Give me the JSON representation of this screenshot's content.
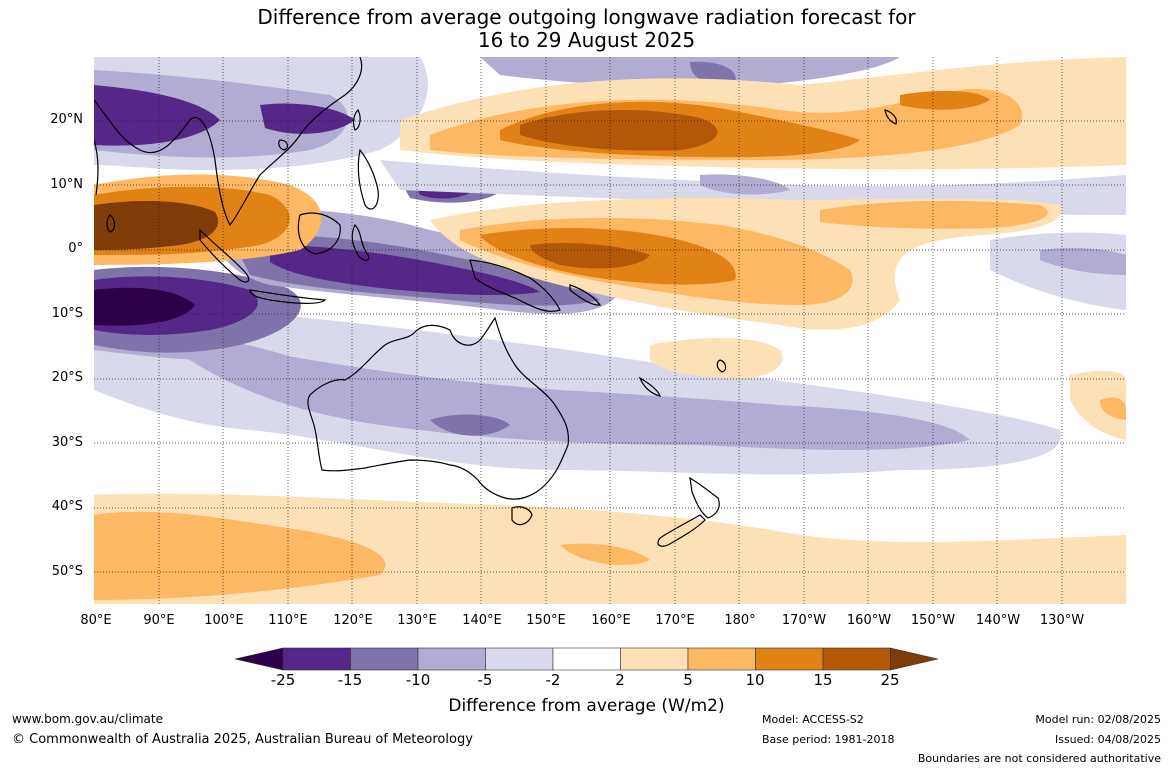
{
  "title_line1": "Difference from average outgoing longwave radiation forecast for",
  "title_line2": "16 to 29 August 2025",
  "lat_labels": [
    "20°N",
    "10°N",
    "0°",
    "10°S",
    "20°S",
    "30°S",
    "40°S",
    "50°S"
  ],
  "lon_labels": [
    "80°E",
    "90°E",
    "100°E",
    "110°E",
    "120°E",
    "130°E",
    "140°E",
    "150°E",
    "160°E",
    "170°E",
    "180°",
    "170°W",
    "160°W",
    "150°W",
    "140°W",
    "130°W"
  ],
  "colorbar": {
    "labels": [
      "-25",
      "-15",
      "-10",
      "-5",
      "-2",
      "2",
      "5",
      "10",
      "15",
      "25"
    ],
    "colors": [
      "#2d004b",
      "#542788",
      "#8073ac",
      "#b2abd2",
      "#d8daeb",
      "#ffffff",
      "#fee0b6",
      "#fdb863",
      "#e08214",
      "#b35806",
      "#7f3b08"
    ],
    "title": "Difference from average (W/m2)"
  },
  "footer": {
    "url": "www.bom.gov.au/climate",
    "copyright": "© Commonwealth of Australia 2025, Australian Bureau of Meteorology",
    "model": "Model: ACCESS-S2",
    "base_period": "Base period: 1981-2018",
    "model_run": "Model run: 02/08/2025",
    "issued": "Issued: 04/08/2025",
    "disclaimer": "Boundaries are not considered authoritative"
  }
}
